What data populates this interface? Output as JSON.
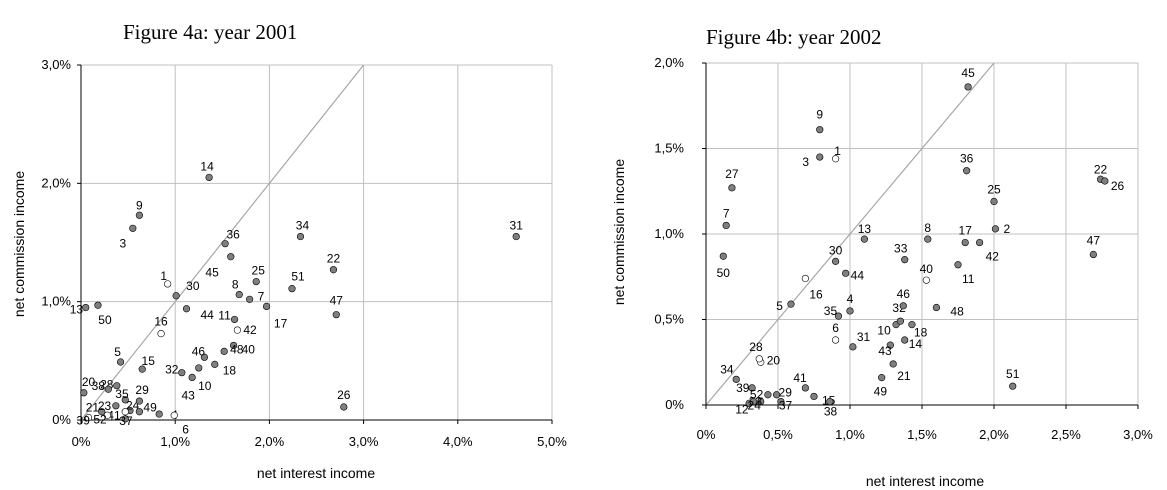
{
  "chart_data": [
    {
      "type": "scatter",
      "title": "Figure 4a: year 2001",
      "xlabel": "net interest income",
      "ylabel": "net commission income",
      "xlim": [
        0,
        5
      ],
      "ylim": [
        0,
        3
      ],
      "x_ticks": [
        "0%",
        "1,0%",
        "2,0%",
        "3,0%",
        "4,0%",
        "5,0%"
      ],
      "y_ticks": [
        "0%",
        "1,0%",
        "2,0%",
        "3,0%"
      ],
      "grid": true,
      "diagonal": true,
      "colors": {
        "filled": "#7f7f7f",
        "hollow": "#ffffff",
        "edge": "#000000",
        "grid": "#c0c0c0",
        "diagonal": "#a6a6a6"
      },
      "points": [
        {
          "label": "1",
          "x": 0.92,
          "y": 1.15,
          "hollow": true
        },
        {
          "label": "3",
          "x": 0.55,
          "y": 1.62
        },
        {
          "label": "4",
          "x": 0.83,
          "y": 0.05
        },
        {
          "label": "5",
          "x": 0.42,
          "y": 0.49
        },
        {
          "label": "6",
          "x": 0.99,
          "y": 0.04,
          "hollow": true
        },
        {
          "label": "7",
          "x": 1.79,
          "y": 1.02
        },
        {
          "label": "8",
          "x": 1.68,
          "y": 1.06
        },
        {
          "label": "9",
          "x": 0.62,
          "y": 1.73
        },
        {
          "label": "10",
          "x": 1.25,
          "y": 0.44
        },
        {
          "label": "11",
          "x": 1.63,
          "y": 0.85
        },
        {
          "label": "13",
          "x": 0.05,
          "y": 0.95
        },
        {
          "label": "14",
          "x": 1.36,
          "y": 2.05
        },
        {
          "label": "15",
          "x": 0.65,
          "y": 0.43
        },
        {
          "label": "16",
          "x": 0.85,
          "y": 0.73,
          "hollow": true
        },
        {
          "label": "17",
          "x": 1.97,
          "y": 0.96
        },
        {
          "label": "18",
          "x": 1.42,
          "y": 0.47
        },
        {
          "label": "20",
          "x": 0.03,
          "y": 0.23
        },
        {
          "label": "21",
          "x": 0.22,
          "y": 0.07
        },
        {
          "label": "22",
          "x": 2.68,
          "y": 1.27
        },
        {
          "label": "23",
          "x": 0.37,
          "y": 0.12
        },
        {
          "label": "24",
          "x": 0.52,
          "y": 0.08
        },
        {
          "label": "25",
          "x": 1.86,
          "y": 1.17
        },
        {
          "label": "26",
          "x": 2.79,
          "y": 0.11
        },
        {
          "label": "28",
          "x": 0.38,
          "y": 0.29
        },
        {
          "label": "29",
          "x": 0.62,
          "y": 0.16
        },
        {
          "label": "30",
          "x": 1.01,
          "y": 1.05
        },
        {
          "label": "31",
          "x": 4.62,
          "y": 1.55
        },
        {
          "label": "32",
          "x": 1.07,
          "y": 0.4
        },
        {
          "label": "34",
          "x": 2.33,
          "y": 1.55
        },
        {
          "label": "35",
          "x": 0.47,
          "y": 0.17
        },
        {
          "label": "36",
          "x": 1.53,
          "y": 1.49
        },
        {
          "label": "37",
          "x": 0.47,
          "y": 0.01
        },
        {
          "label": "38",
          "x": 0.29,
          "y": 0.26
        },
        {
          "label": "39",
          "x": 0.08,
          "y": 0.02,
          "hollow": true
        },
        {
          "label": "40",
          "x": 1.62,
          "y": 0.63
        },
        {
          "label": "41",
          "x": 0.47,
          "y": 0.07,
          "hollow": true
        },
        {
          "label": "42",
          "x": 1.66,
          "y": 0.76,
          "hollow": true
        },
        {
          "label": "43",
          "x": 1.18,
          "y": 0.36
        },
        {
          "label": "44",
          "x": 1.12,
          "y": 0.94
        },
        {
          "label": "45",
          "x": 1.59,
          "y": 1.38
        },
        {
          "label": "46",
          "x": 1.31,
          "y": 0.53
        },
        {
          "label": "47",
          "x": 2.71,
          "y": 0.89
        },
        {
          "label": "48",
          "x": 1.52,
          "y": 0.58
        },
        {
          "label": "49",
          "x": 0.62,
          "y": 0.07
        },
        {
          "label": "50",
          "x": 0.18,
          "y": 0.97
        },
        {
          "label": "51",
          "x": 2.24,
          "y": 1.11
        },
        {
          "label": "52",
          "x": 0.28,
          "y": 0.04,
          "hollow": true
        }
      ]
    },
    {
      "type": "scatter",
      "title": "Figure 4b: year 2002",
      "xlabel": "net interest income",
      "ylabel": "net commission income",
      "xlim": [
        0,
        3
      ],
      "ylim": [
        0,
        2
      ],
      "x_ticks": [
        "0%",
        "0,5%",
        "1,0%",
        "1,5%",
        "2,0%",
        "2,5%",
        "3,0%"
      ],
      "y_ticks": [
        "0%",
        "0,5%",
        "1,0%",
        "1,5%",
        "2,0%"
      ],
      "grid": true,
      "diagonal": true,
      "colors": {
        "filled": "#7f7f7f",
        "hollow": "#ffffff",
        "edge": "#000000",
        "grid": "#c0c0c0",
        "diagonal": "#a6a6a6"
      },
      "points": [
        {
          "label": "1",
          "x": 0.9,
          "y": 1.44,
          "hollow": true
        },
        {
          "label": "2",
          "x": 2.01,
          "y": 1.03
        },
        {
          "label": "3",
          "x": 0.79,
          "y": 1.45
        },
        {
          "label": "4",
          "x": 1.0,
          "y": 0.55
        },
        {
          "label": "5",
          "x": 0.59,
          "y": 0.59
        },
        {
          "label": "6",
          "x": 0.9,
          "y": 0.38,
          "hollow": true
        },
        {
          "label": "7",
          "x": 0.14,
          "y": 1.05
        },
        {
          "label": "8",
          "x": 1.54,
          "y": 0.97
        },
        {
          "label": "9",
          "x": 0.79,
          "y": 1.61
        },
        {
          "label": "10",
          "x": 1.32,
          "y": 0.47
        },
        {
          "label": "11",
          "x": 1.75,
          "y": 0.82
        },
        {
          "label": "12",
          "x": 0.3,
          "y": 0.01
        },
        {
          "label": "13",
          "x": 1.1,
          "y": 0.97
        },
        {
          "label": "14",
          "x": 1.38,
          "y": 0.38
        },
        {
          "label": "15",
          "x": 0.75,
          "y": 0.05
        },
        {
          "label": "16",
          "x": 0.69,
          "y": 0.74,
          "hollow": true
        },
        {
          "label": "17",
          "x": 1.8,
          "y": 0.95
        },
        {
          "label": "18",
          "x": 1.43,
          "y": 0.47
        },
        {
          "label": "20",
          "x": 0.38,
          "y": 0.25,
          "hollow": true
        },
        {
          "label": "21",
          "x": 1.3,
          "y": 0.24
        },
        {
          "label": "22",
          "x": 2.74,
          "y": 1.32
        },
        {
          "label": "23",
          "x": 0.38,
          "y": 0.02
        },
        {
          "label": "24",
          "x": 0.33,
          "y": 0.02
        },
        {
          "label": "25",
          "x": 2.0,
          "y": 1.19
        },
        {
          "label": "26",
          "x": 2.77,
          "y": 1.31
        },
        {
          "label": "27",
          "x": 0.18,
          "y": 1.27
        },
        {
          "label": "28",
          "x": 0.37,
          "y": 0.27,
          "hollow": true
        },
        {
          "label": "29",
          "x": 0.49,
          "y": 0.06
        },
        {
          "label": "30",
          "x": 0.9,
          "y": 0.84
        },
        {
          "label": "31",
          "x": 1.02,
          "y": 0.34
        },
        {
          "label": "32",
          "x": 1.35,
          "y": 0.49
        },
        {
          "label": "33",
          "x": 1.38,
          "y": 0.85
        },
        {
          "label": "34",
          "x": 0.21,
          "y": 0.15
        },
        {
          "label": "35",
          "x": 0.92,
          "y": 0.52
        },
        {
          "label": "36",
          "x": 1.81,
          "y": 1.37
        },
        {
          "label": "37",
          "x": 0.52,
          "y": 0.02
        },
        {
          "label": "38",
          "x": 0.86,
          "y": 0.02
        },
        {
          "label": "39",
          "x": 0.32,
          "y": 0.1
        },
        {
          "label": "40",
          "x": 1.53,
          "y": 0.73,
          "hollow": true
        },
        {
          "label": "41",
          "x": 0.69,
          "y": 0.1
        },
        {
          "label": "42",
          "x": 1.9,
          "y": 0.95
        },
        {
          "label": "43",
          "x": 1.28,
          "y": 0.35
        },
        {
          "label": "44",
          "x": 0.97,
          "y": 0.77
        },
        {
          "label": "45",
          "x": 1.82,
          "y": 1.86
        },
        {
          "label": "46",
          "x": 1.37,
          "y": 0.58
        },
        {
          "label": "47",
          "x": 2.69,
          "y": 0.88
        },
        {
          "label": "48",
          "x": 1.6,
          "y": 0.57
        },
        {
          "label": "49",
          "x": 1.22,
          "y": 0.16
        },
        {
          "label": "50",
          "x": 0.12,
          "y": 0.87
        },
        {
          "label": "51",
          "x": 2.13,
          "y": 0.11
        },
        {
          "label": "52",
          "x": 0.43,
          "y": 0.06
        }
      ]
    }
  ]
}
